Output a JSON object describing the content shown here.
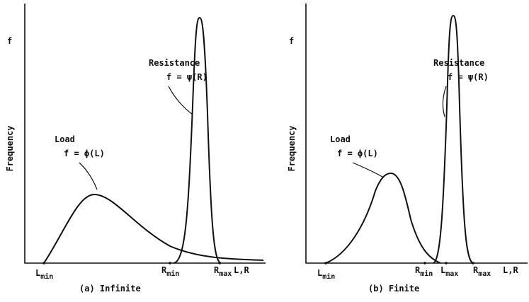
{
  "panels": [
    {
      "y_symbol": "f",
      "y_axis_label": "Frequency",
      "resistance": {
        "label": "Resistance",
        "formula": "f = ψ(R)"
      },
      "load": {
        "label": "Load",
        "formula": "f = ϕ(L)"
      },
      "x_labels": [
        {
          "base": "L",
          "sub": "min"
        },
        {
          "base": "R",
          "sub": "min"
        },
        {
          "base": "R",
          "sub": "max"
        }
      ],
      "x_axis_label": "L,R",
      "caption": "(a) Infinite"
    },
    {
      "y_symbol": "f",
      "y_axis_label": "Frequency",
      "resistance": {
        "label": "Resistance",
        "formula": "f = ψ(R)"
      },
      "load": {
        "label": "Load",
        "formula": "f = ϕ(L)"
      },
      "x_labels": [
        {
          "base": "L",
          "sub": "min"
        },
        {
          "base": "R",
          "sub": "min"
        },
        {
          "base": "L",
          "sub": "max"
        },
        {
          "base": "R",
          "sub": "max"
        }
      ],
      "x_axis_label": "L,R",
      "caption": "(b) Finite"
    }
  ]
}
